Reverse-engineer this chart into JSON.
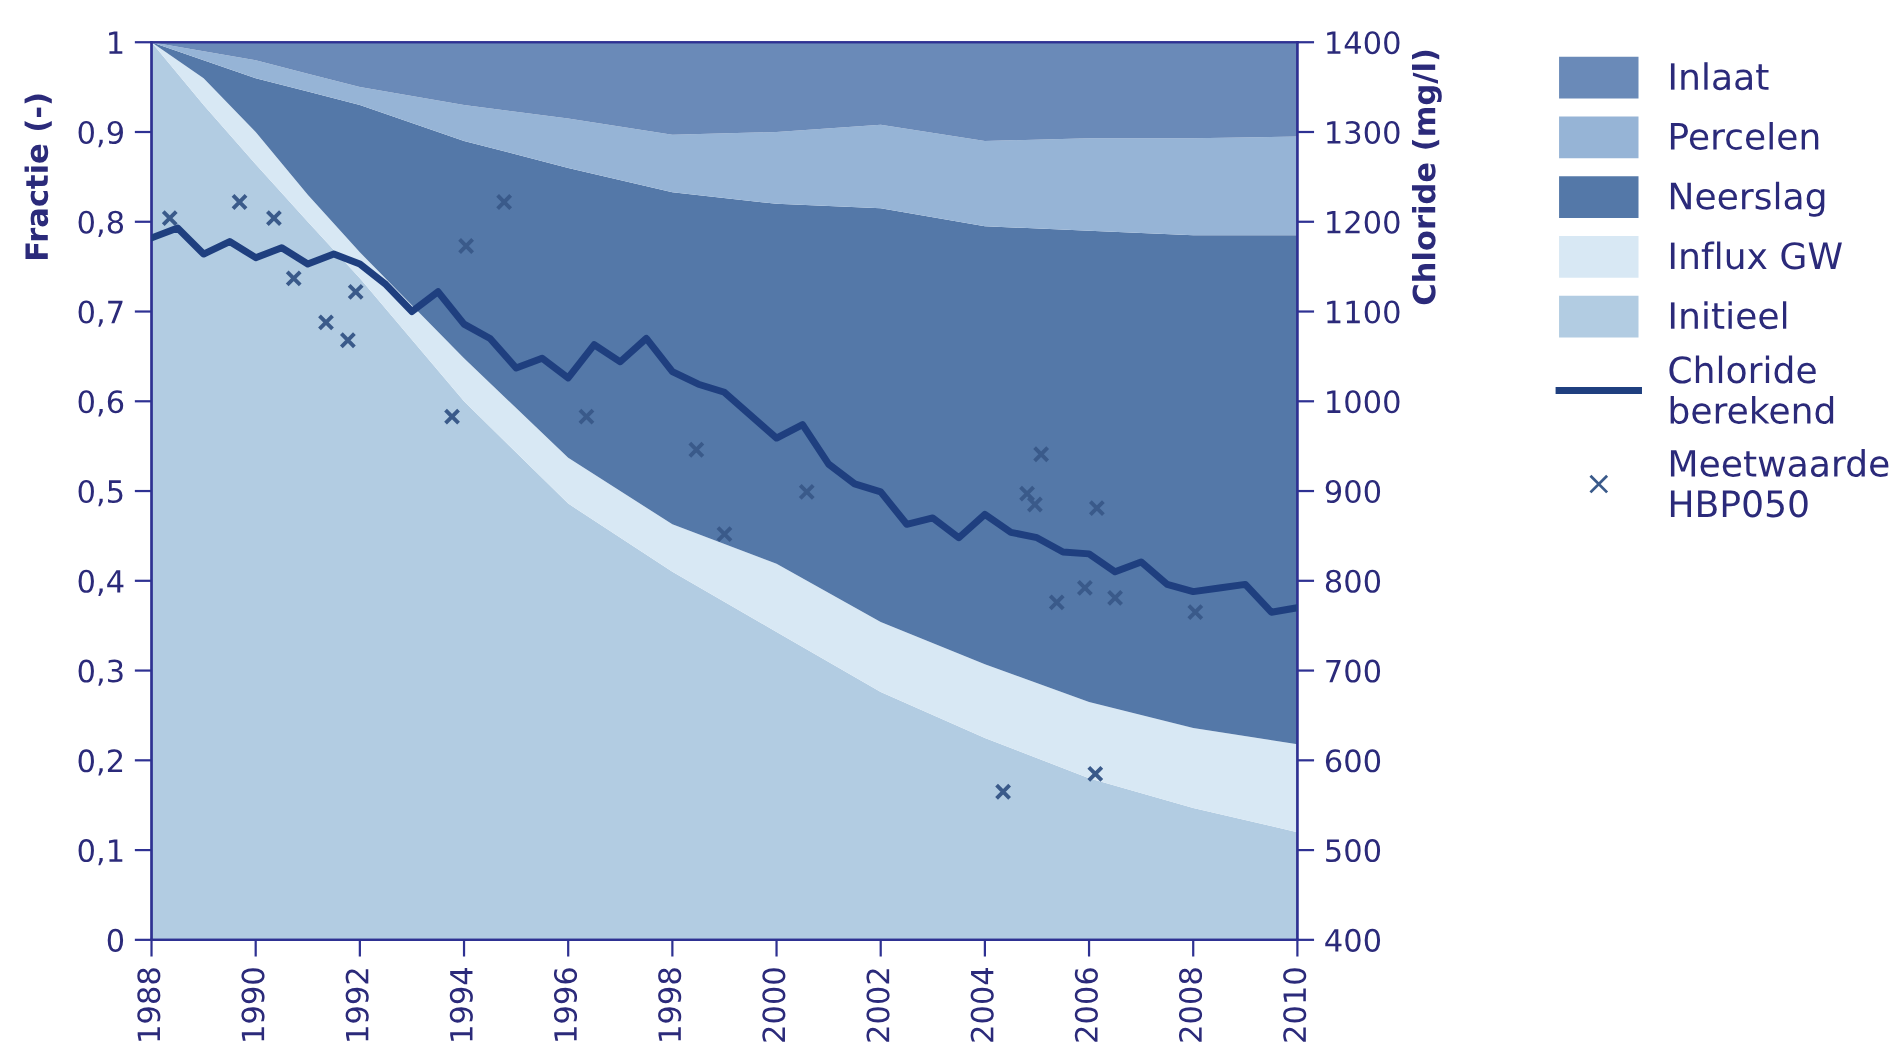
{
  "chart_data": {
    "type": "area",
    "stacked": true,
    "ylabel": "Fractie (-)",
    "y2label": "Chloride (mg/l)",
    "x": [
      1988,
      1989,
      1990,
      1991,
      1992,
      1994,
      1996,
      1998,
      2000,
      2002,
      2004,
      2006,
      2008,
      2010
    ],
    "xlim": [
      1988,
      2010
    ],
    "xticks": [
      1988,
      1990,
      1992,
      1994,
      1996,
      1998,
      2000,
      2002,
      2004,
      2006,
      2008,
      2010
    ],
    "ylim": [
      0,
      1
    ],
    "yticks": [
      0,
      {
        "value": 0.1,
        "label": "0,1"
      },
      {
        "value": 0.2,
        "label": "0,2"
      },
      {
        "value": 0.3,
        "label": "0,3"
      },
      {
        "value": 0.4,
        "label": "0,4"
      },
      {
        "value": 0.5,
        "label": "0,5"
      },
      {
        "value": 0.6,
        "label": "0,6"
      },
      {
        "value": 0.7,
        "label": "0,7"
      },
      {
        "value": 0.8,
        "label": "0,8"
      },
      {
        "value": 0.9,
        "label": "0,9"
      },
      1
    ],
    "y2lim": [
      400,
      1400
    ],
    "y2ticks": [
      400,
      500,
      600,
      700,
      800,
      900,
      1000,
      1100,
      1200,
      1300,
      1400
    ],
    "grid": false,
    "legend": "right",
    "series": [
      {
        "name": "Initieel",
        "color": "#b2cce2",
        "values": [
          1.0,
          0.93,
          0.864,
          0.8,
          0.737,
          0.6,
          0.486,
          0.41,
          0.343,
          0.276,
          0.225,
          0.18,
          0.147,
          0.12
        ]
      },
      {
        "name": "Influx GW",
        "color": "#d8e8f4",
        "values": [
          0,
          0.03,
          0.036,
          0.03,
          0.029,
          0.048,
          0.051,
          0.053,
          0.076,
          0.078,
          0.082,
          0.085,
          0.089,
          0.098
        ]
      },
      {
        "name": "Neerslag",
        "color": "#5478a8",
        "values": [
          0,
          0.02,
          0.06,
          0.115,
          0.164,
          0.242,
          0.323,
          0.37,
          0.401,
          0.461,
          0.488,
          0.525,
          0.549,
          0.567
        ]
      },
      {
        "name": "Percelen",
        "color": "#96b4d6",
        "values": [
          0,
          0.01,
          0.02,
          0.02,
          0.02,
          0.04,
          0.055,
          0.064,
          0.08,
          0.093,
          0.095,
          0.103,
          0.108,
          0.11
        ]
      },
      {
        "name": "Inlaat",
        "color": "#6a8ab8",
        "values": [
          0,
          0.01,
          0.02,
          0.035,
          0.05,
          0.07,
          0.085,
          0.103,
          0.1,
          0.092,
          0.11,
          0.107,
          0.107,
          0.105
        ]
      },
      {
        "name": "Chloride\nberekend",
        "type": "line",
        "axis": "y2",
        "color": "#1f3f7f",
        "line_style": "solid",
        "marker": "none",
        "x": [
          1988,
          1988.5,
          1989,
          1989.5,
          1990,
          1990.5,
          1991,
          1991.5,
          1992,
          1992.5,
          1993,
          1993.5,
          1994,
          1994.5,
          1995,
          1995.5,
          1996,
          1996.5,
          1997,
          1997.5,
          1998,
          1998.5,
          1999,
          2000,
          2000.5,
          2001,
          2001.5,
          2002,
          2002.5,
          2003,
          2003.5,
          2004,
          2004.5,
          2005,
          2005.5,
          2006,
          2006.5,
          2007,
          2007.5,
          2008,
          2008.5,
          2009,
          2009.5,
          2010
        ],
        "values": [
          1182,
          1193,
          1164,
          1178,
          1160,
          1171,
          1153,
          1164,
          1153,
          1130,
          1100,
          1122,
          1086,
          1070,
          1037,
          1048,
          1026,
          1063,
          1044,
          1070,
          1033,
          1019,
          1010,
          959,
          974,
          930,
          908,
          899,
          863,
          870,
          848,
          874,
          854,
          848,
          832,
          830,
          810,
          821,
          796,
          788,
          792,
          796,
          765,
          770
        ]
      },
      {
        "name": "Meetwaarde\nHBP050",
        "type": "scatter",
        "axis": "y2",
        "color": "#3a5a8a",
        "marker": "cross",
        "x": [
          1988.35,
          1989.69,
          1990.35,
          1990.73,
          1991.35,
          1991.77,
          1991.92,
          1993.77,
          1994.04,
          1994.77,
          1996.35,
          1998.46,
          1999.0,
          2000.58,
          2004.35,
          2004.81,
          2004.96,
          2005.08,
          2005.38,
          2005.92,
          2006.12,
          2006.15,
          2006.5,
          2008.04
        ],
        "values": [
          1204,
          1222,
          1204,
          1137,
          1088,
          1068,
          1122,
          983,
          1173,
          1222,
          983,
          946,
          852,
          899,
          565,
          897,
          885,
          941,
          776,
          792,
          585,
          881,
          781,
          765
        ]
      }
    ]
  }
}
